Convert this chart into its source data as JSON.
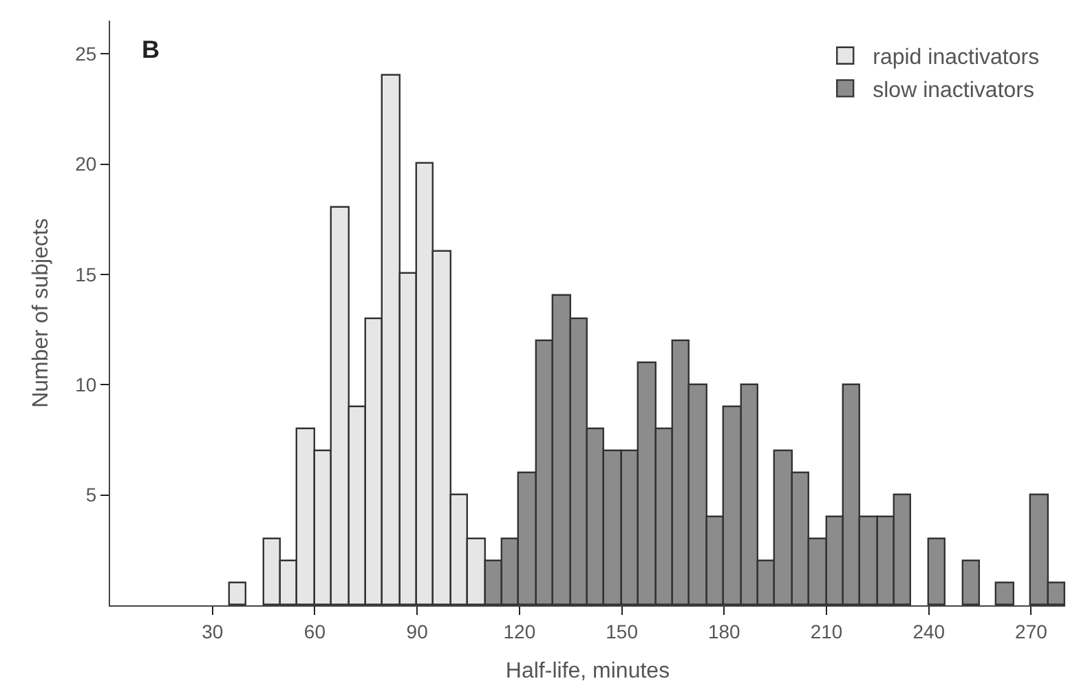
{
  "chart_data": {
    "type": "histogram",
    "xlabel": "Half-life, minutes",
    "ylabel": "Number of subjects",
    "annotations": [
      "B"
    ],
    "bins": [
      35,
      40,
      45,
      50,
      55,
      60,
      65,
      70,
      75,
      80,
      85,
      90,
      95,
      100,
      105,
      110,
      115,
      120,
      125,
      130,
      135,
      140,
      145,
      150,
      155,
      160,
      165,
      170,
      175,
      180,
      185,
      190,
      195,
      200,
      205,
      210,
      215,
      220,
      225,
      230,
      235,
      240,
      245,
      250,
      255,
      260,
      265,
      270,
      275,
      280
    ],
    "series": [
      {
        "name": "rapid inactivators",
        "color": "#e6e6e6",
        "values": [
          1,
          0,
          3,
          2,
          8,
          7,
          18,
          9,
          13,
          24,
          15,
          20,
          16,
          5,
          3,
          null,
          null,
          null,
          null,
          null,
          null,
          null,
          null,
          null,
          null,
          null,
          null,
          null,
          null,
          null,
          null,
          null,
          null,
          null,
          null,
          null,
          null,
          null,
          null,
          null,
          null,
          null,
          null,
          null,
          null,
          null,
          null,
          null,
          null
        ]
      },
      {
        "name": "slow inactivators",
        "color": "#8c8c8c",
        "values": [
          null,
          null,
          null,
          null,
          null,
          null,
          null,
          null,
          null,
          null,
          null,
          null,
          null,
          null,
          null,
          2,
          3,
          6,
          12,
          14,
          13,
          8,
          7,
          7,
          11,
          8,
          12,
          10,
          4,
          9,
          10,
          2,
          7,
          6,
          3,
          4,
          10,
          4,
          4,
          5,
          0,
          3,
          0,
          2,
          0,
          1,
          0,
          5,
          1
        ]
      }
    ],
    "xlim": [
      0,
      280
    ],
    "ylim": [
      0,
      26.5
    ],
    "xticks": [
      30,
      60,
      90,
      120,
      150,
      180,
      210,
      240,
      270
    ],
    "yticks": [
      5,
      10,
      15,
      20,
      25
    ],
    "grid": false,
    "legend": "top right"
  }
}
